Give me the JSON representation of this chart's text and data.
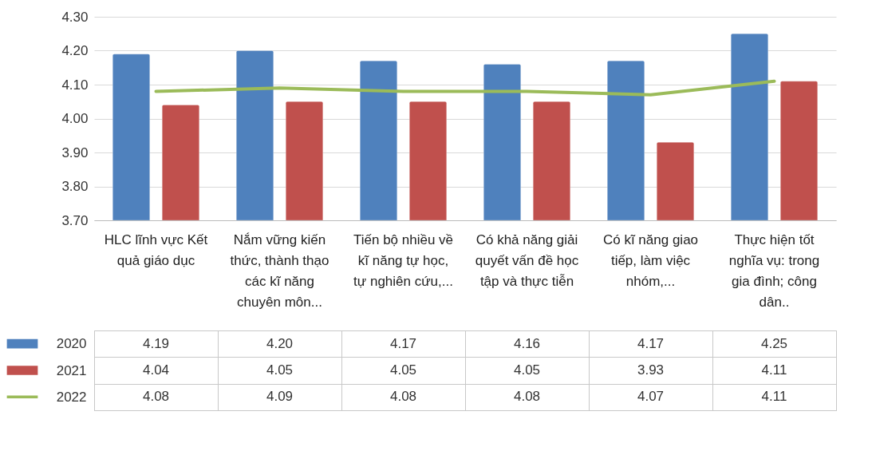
{
  "chart_data": {
    "type": "bar",
    "categories": [
      "HLC lĩnh vực Kết quả giáo dục",
      "Nắm vững kiến thức, thành thạo các kĩ năng chuyên môn...",
      "Tiến bộ nhiều về kĩ năng tự học, tự nghiên cứu,...",
      "Có khả năng giải quyết vấn đề học tập và thực tiễn",
      "Có kĩ năng giao tiếp, làm việc nhóm,...",
      "Thực hiện tốt nghĩa vụ: trong gia đình; công dân.."
    ],
    "series": [
      {
        "name": "2020",
        "color": "#4f81bd",
        "values": [
          4.19,
          4.2,
          4.17,
          4.16,
          4.17,
          4.25
        ],
        "value_labels": [
          "4.19",
          "4.20",
          "4.17",
          "4.16",
          "4.17",
          "4.25"
        ]
      },
      {
        "name": "2021",
        "color": "#c0504d",
        "values": [
          4.04,
          4.05,
          4.05,
          4.05,
          3.93,
          4.11
        ],
        "value_labels": [
          "4.04",
          "4.05",
          "4.05",
          "4.05",
          "3.93",
          "4.11"
        ]
      },
      {
        "name": "2022",
        "type": "line",
        "color": "#9bbb59",
        "values": [
          4.08,
          4.09,
          4.08,
          4.08,
          4.07,
          4.11
        ],
        "value_labels": [
          "4.08",
          "4.09",
          "4.08",
          "4.08",
          "4.07",
          "4.11"
        ]
      }
    ],
    "ylim": [
      3.7,
      4.3
    ],
    "yticks": [
      {
        "value": 3.7,
        "label": "3.70"
      },
      {
        "value": 3.8,
        "label": "3.80"
      },
      {
        "value": 3.9,
        "label": "3.90"
      },
      {
        "value": 4.0,
        "label": "4.00"
      },
      {
        "value": 4.1,
        "label": "4.10"
      },
      {
        "value": 4.2,
        "label": "4.20"
      },
      {
        "value": 4.3,
        "label": "4.30"
      }
    ],
    "grid": "y",
    "legend": "bottom left",
    "marker": "none"
  }
}
